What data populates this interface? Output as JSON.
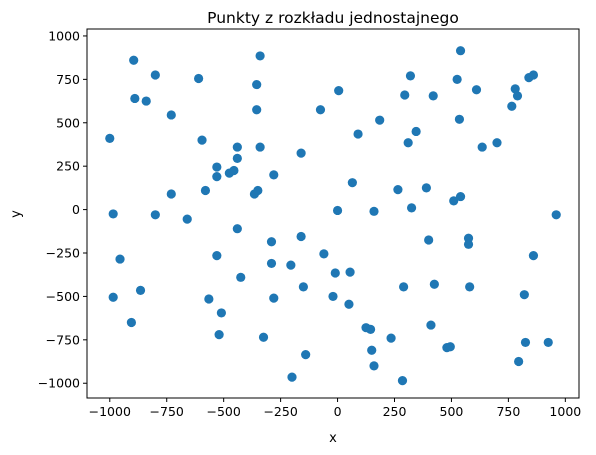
{
  "chart_data": {
    "type": "scatter",
    "title": "Punkty z rozkładu jednostajnego",
    "xlabel": "x",
    "ylabel": "y",
    "xlim": [
      -1100,
      1060
    ],
    "ylim": [
      -1085,
      1040
    ],
    "xticks": [
      -1000,
      -750,
      -500,
      -250,
      0,
      250,
      500,
      750,
      1000
    ],
    "yticks": [
      -1000,
      -750,
      -500,
      -250,
      0,
      250,
      500,
      750,
      1000
    ],
    "grid": false,
    "marker_color": "#1f77b4",
    "points": [
      {
        "x": -895,
        "y": 860
      },
      {
        "x": -800,
        "y": 775
      },
      {
        "x": -890,
        "y": 640
      },
      {
        "x": -840,
        "y": 625
      },
      {
        "x": -730,
        "y": 545
      },
      {
        "x": -1000,
        "y": 410
      },
      {
        "x": -985,
        "y": -25
      },
      {
        "x": -800,
        "y": -30
      },
      {
        "x": -730,
        "y": 90
      },
      {
        "x": -660,
        "y": -55
      },
      {
        "x": -955,
        "y": -285
      },
      {
        "x": -865,
        "y": -465
      },
      {
        "x": -985,
        "y": -505
      },
      {
        "x": -905,
        "y": -650
      },
      {
        "x": -610,
        "y": 755
      },
      {
        "x": -595,
        "y": 400
      },
      {
        "x": -580,
        "y": 110
      },
      {
        "x": -530,
        "y": 245
      },
      {
        "x": -530,
        "y": 190
      },
      {
        "x": -475,
        "y": 210
      },
      {
        "x": -455,
        "y": 225
      },
      {
        "x": -440,
        "y": 295
      },
      {
        "x": -440,
        "y": 360
      },
      {
        "x": -440,
        "y": -110
      },
      {
        "x": -530,
        "y": -265
      },
      {
        "x": -565,
        "y": -515
      },
      {
        "x": -510,
        "y": -595
      },
      {
        "x": -520,
        "y": -720
      },
      {
        "x": -425,
        "y": -390
      },
      {
        "x": -340,
        "y": 885
      },
      {
        "x": -355,
        "y": 720
      },
      {
        "x": -355,
        "y": 575
      },
      {
        "x": -340,
        "y": 360
      },
      {
        "x": -365,
        "y": 90
      },
      {
        "x": -350,
        "y": 110
      },
      {
        "x": -280,
        "y": 200
      },
      {
        "x": -290,
        "y": -185
      },
      {
        "x": -290,
        "y": -310
      },
      {
        "x": -280,
        "y": -510
      },
      {
        "x": -325,
        "y": -735
      },
      {
        "x": -205,
        "y": -320
      },
      {
        "x": -160,
        "y": 325
      },
      {
        "x": -160,
        "y": -155
      },
      {
        "x": -150,
        "y": -445
      },
      {
        "x": -140,
        "y": -835
      },
      {
        "x": -200,
        "y": -965
      },
      {
        "x": -75,
        "y": 575
      },
      {
        "x": 5,
        "y": 685
      },
      {
        "x": -60,
        "y": -255
      },
      {
        "x": -10,
        "y": -365
      },
      {
        "x": -20,
        "y": -500
      },
      {
        "x": 0,
        "y": -5
      },
      {
        "x": 50,
        "y": -545
      },
      {
        "x": 55,
        "y": -360
      },
      {
        "x": 65,
        "y": 155
      },
      {
        "x": 90,
        "y": 435
      },
      {
        "x": 125,
        "y": -680
      },
      {
        "x": 145,
        "y": -690
      },
      {
        "x": 150,
        "y": -810
      },
      {
        "x": 160,
        "y": -900
      },
      {
        "x": 160,
        "y": -10
      },
      {
        "x": 185,
        "y": 515
      },
      {
        "x": 235,
        "y": -740
      },
      {
        "x": 265,
        "y": 115
      },
      {
        "x": 285,
        "y": -985
      },
      {
        "x": 290,
        "y": -445
      },
      {
        "x": 295,
        "y": 660
      },
      {
        "x": 310,
        "y": 385
      },
      {
        "x": 320,
        "y": 770
      },
      {
        "x": 325,
        "y": 10
      },
      {
        "x": 345,
        "y": 450
      },
      {
        "x": 390,
        "y": 125
      },
      {
        "x": 400,
        "y": -175
      },
      {
        "x": 410,
        "y": -665
      },
      {
        "x": 420,
        "y": 655
      },
      {
        "x": 425,
        "y": -430
      },
      {
        "x": 480,
        "y": -795
      },
      {
        "x": 495,
        "y": -790
      },
      {
        "x": 510,
        "y": 50
      },
      {
        "x": 525,
        "y": 750
      },
      {
        "x": 535,
        "y": 520
      },
      {
        "x": 540,
        "y": 915
      },
      {
        "x": 540,
        "y": 75
      },
      {
        "x": 575,
        "y": -165
      },
      {
        "x": 575,
        "y": -200
      },
      {
        "x": 580,
        "y": -445
      },
      {
        "x": 610,
        "y": 690
      },
      {
        "x": 635,
        "y": 360
      },
      {
        "x": 700,
        "y": 385
      },
      {
        "x": 765,
        "y": 595
      },
      {
        "x": 780,
        "y": 695
      },
      {
        "x": 790,
        "y": 655
      },
      {
        "x": 795,
        "y": -875
      },
      {
        "x": 820,
        "y": -490
      },
      {
        "x": 825,
        "y": -765
      },
      {
        "x": 840,
        "y": 760
      },
      {
        "x": 860,
        "y": 775
      },
      {
        "x": 860,
        "y": -265
      },
      {
        "x": 925,
        "y": -765
      },
      {
        "x": 960,
        "y": -30
      }
    ]
  }
}
